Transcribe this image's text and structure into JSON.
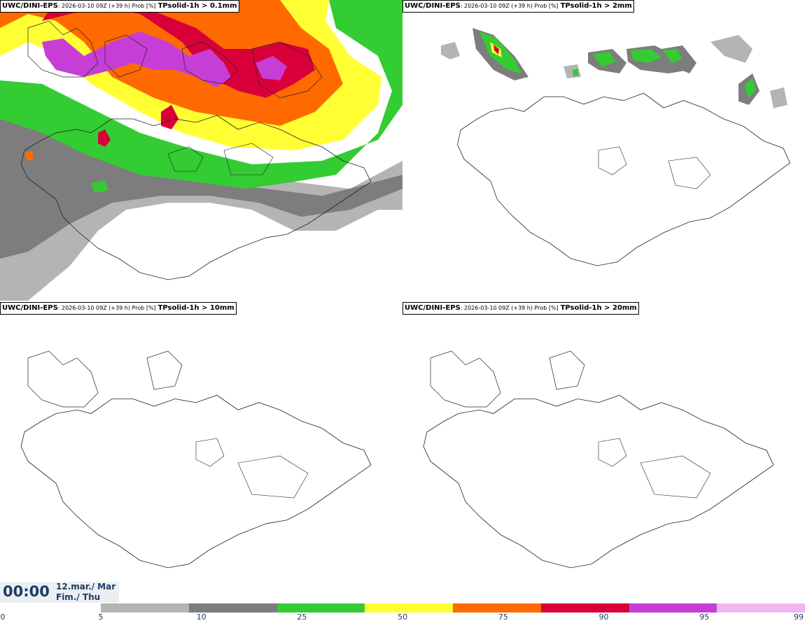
{
  "panels": [
    {
      "model": "UWC/DINI-EPS",
      "meta": ": 2026-03-10 09Z (+39 h) Prob [%]",
      "field": "TPsolid-1h > 0.1mm"
    },
    {
      "model": "UWC/DINI-EPS",
      "meta": ": 2026-03-10 09Z (+39 h) Prob [%]",
      "field": "TPsolid-1h > 2mm"
    },
    {
      "model": "UWC/DINI-EPS",
      "meta": ": 2026-03-10 09Z (+39 h) Prob [%]",
      "field": "TPsolid-1h > 10mm"
    },
    {
      "model": "UWC/DINI-EPS",
      "meta": ": 2026-03-10 09Z (+39 h) Prob [%]",
      "field": "TPsolid-1h > 20mm"
    }
  ],
  "time": "00:00",
  "date_line1": "12.mar./ Mar",
  "date_line2": "Fim./ Thu",
  "colorbar": {
    "ticks": [
      "0",
      "5",
      "10",
      "25",
      "50",
      "75",
      "90",
      "95",
      "99"
    ],
    "colors": [
      "#b4b4b4",
      "#7d7d7d",
      "#33cc33",
      "#ffff33",
      "#ff6a00",
      "#d9003a",
      "#c73ed6",
      "#f0b6f0"
    ]
  }
}
